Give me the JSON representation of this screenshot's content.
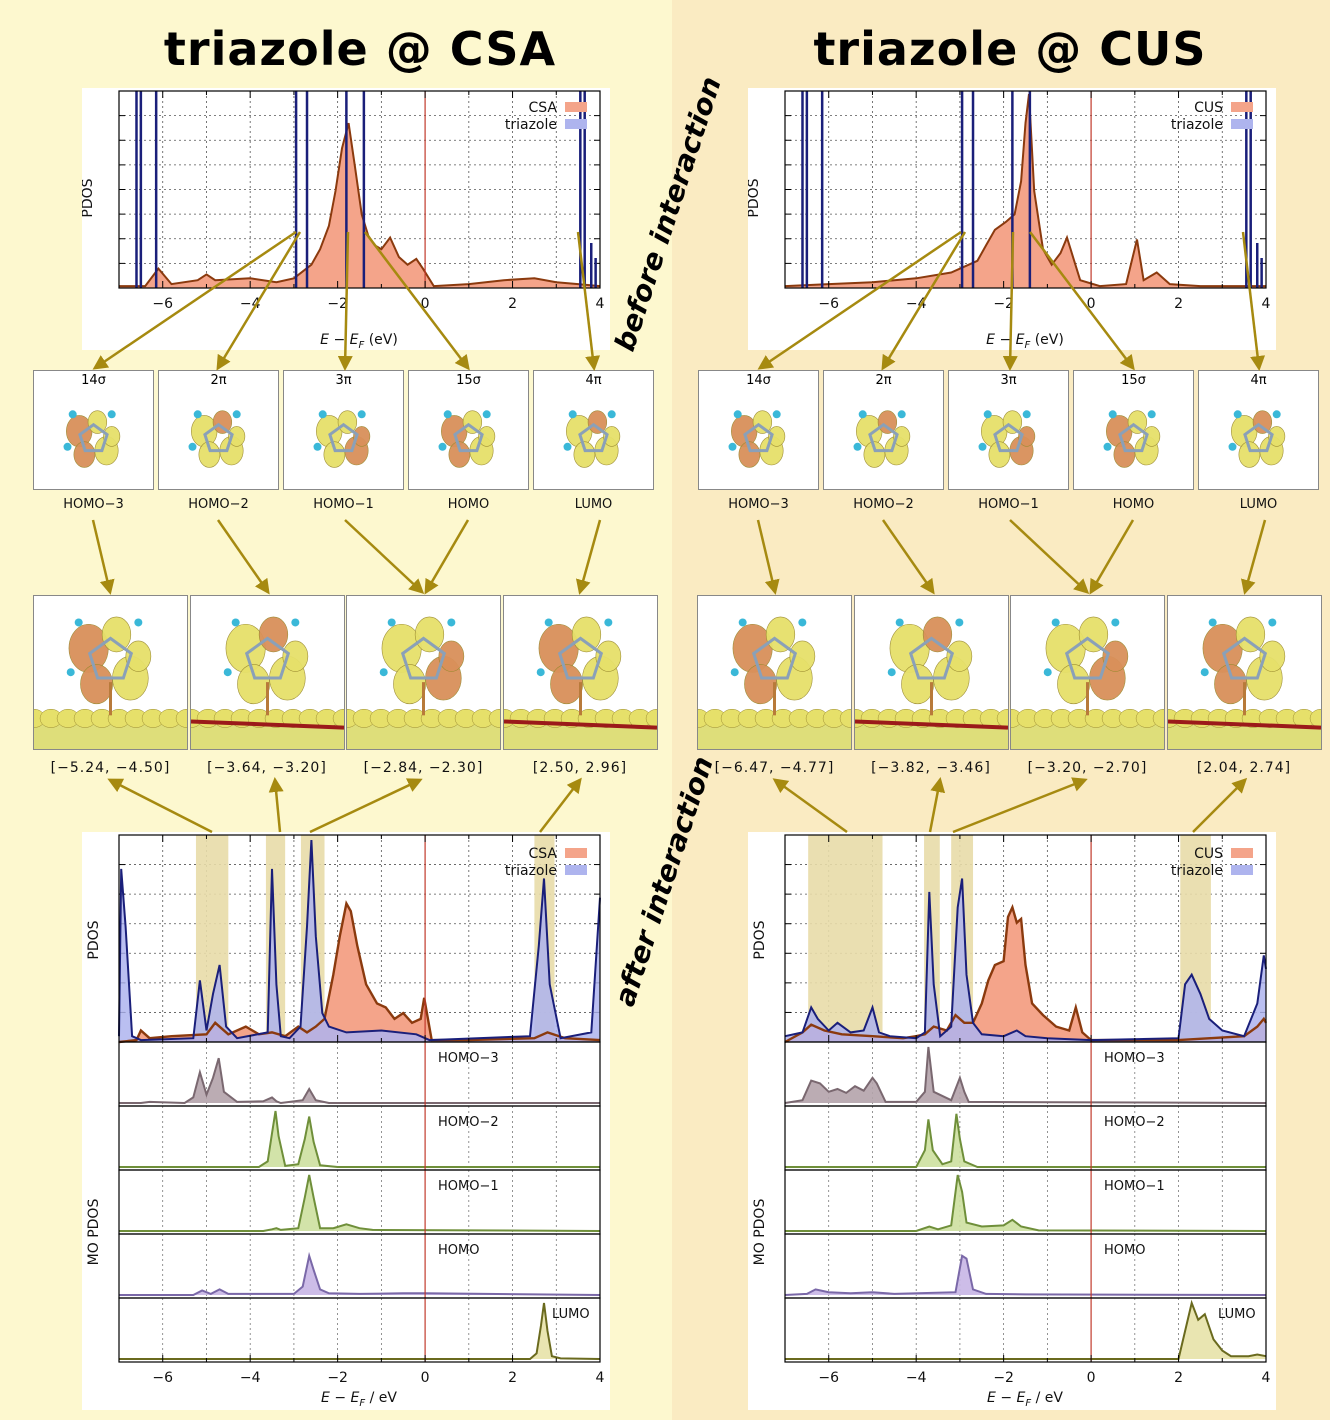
{
  "left": {
    "title": "triazole @ CSA",
    "surface": "CSA",
    "legend": [
      "CSA",
      "triazole"
    ],
    "top_xlabel": "E − E",
    "top_xlabel_sub": "F",
    "top_xlabel_unit": " (eV)",
    "ylabel_top": "PDOS",
    "orbitals": [
      "14σ",
      "2π",
      "3π",
      "15σ",
      "4π"
    ],
    "mo_names": [
      "HOMO−3",
      "HOMO−2",
      "HOMO−1",
      "HOMO",
      "LUMO"
    ],
    "ranges": [
      "[−5.24, −4.50]",
      "[−3.64, −3.20]",
      "[−2.84, −2.30]",
      "[2.50, 2.96]"
    ],
    "ylabel_bottom": "PDOS",
    "ylabel_mo": "MO PDOS",
    "bottom_xlabel": "E − E",
    "bottom_xlabel_sub": "F",
    "bottom_xlabel_unit": " / eV"
  },
  "right": {
    "title": "triazole @ CUS",
    "surface": "CUS",
    "legend": [
      "CUS",
      "triazole"
    ],
    "top_xlabel": "E − E",
    "top_xlabel_sub": "F",
    "top_xlabel_unit": " (eV)",
    "ylabel_top": "PDOS",
    "orbitals": [
      "14σ",
      "2π",
      "3π",
      "15σ",
      "4π"
    ],
    "mo_names": [
      "HOMO−3",
      "HOMO−2",
      "HOMO−1",
      "HOMO",
      "LUMO"
    ],
    "ranges": [
      "[−6.47, −4.77]",
      "[−3.82, −3.46]",
      "[−3.20, −2.70]",
      "[2.04, 2.74]"
    ],
    "ylabel_bottom": "PDOS",
    "ylabel_mo": "MO PDOS",
    "bottom_xlabel": "E − E",
    "bottom_xlabel_sub": "F",
    "bottom_xlabel_unit": " / eV"
  },
  "labels": {
    "before": "before interaction",
    "after": "after interaction"
  },
  "colors": {
    "surface_fill": "#f4a48a",
    "surface_line": "#8b3a0e",
    "triazole_line": "#1a1f7a",
    "triazole_fill": "#aeb4ee",
    "fermi_line": "#c0392b",
    "highlight": "#e8dca8",
    "arrow": "#a68a10",
    "orbital_yellow": "#e6e06a",
    "orbital_orange": "#d9905a"
  },
  "chart_data": [
    {
      "type": "line",
      "panel": "triazole @ CSA, before interaction",
      "xlim": [
        -7,
        4
      ],
      "xticks": [
        -6,
        -4,
        -2,
        0,
        2,
        4
      ],
      "xlabel": "E − E_F (eV)",
      "ylabel": "PDOS",
      "series": [
        {
          "name": "triazole",
          "kind": "lines",
          "x": [
            -6.6,
            -6.5,
            -6.15,
            -2.95,
            -2.7,
            -1.8,
            -1.4,
            3.55,
            3.65,
            3.8,
            3.9
          ]
        },
        {
          "name": "CSA",
          "kind": "curve",
          "x": [
            -7,
            -6.4,
            -6.1,
            -5.8,
            -5.2,
            -5.0,
            -4.8,
            -4.0,
            -3.4,
            -3.0,
            -2.6,
            -2.4,
            -2.2,
            -2.05,
            -1.9,
            -1.75,
            -1.6,
            -1.45,
            -1.3,
            -1.15,
            -1.0,
            -0.8,
            -0.6,
            -0.4,
            -0.2,
            -0.05,
            0.2,
            1.0,
            1.8,
            2.5,
            3.0,
            3.5,
            4.0
          ],
          "y": [
            0.01,
            0.01,
            0.1,
            0.02,
            0.04,
            0.07,
            0.04,
            0.05,
            0.03,
            0.05,
            0.12,
            0.2,
            0.32,
            0.5,
            0.72,
            0.85,
            0.62,
            0.38,
            0.27,
            0.22,
            0.2,
            0.26,
            0.16,
            0.12,
            0.15,
            0.1,
            0.01,
            0.02,
            0.04,
            0.05,
            0.03,
            0.02,
            0.01
          ]
        }
      ]
    },
    {
      "type": "line",
      "panel": "triazole @ CUS, before interaction",
      "xlim": [
        -7,
        4
      ],
      "xticks": [
        -6,
        -4,
        -2,
        0,
        2,
        4
      ],
      "xlabel": "E − E_F (eV)",
      "ylabel": "PDOS",
      "series": [
        {
          "name": "triazole",
          "kind": "lines",
          "x": [
            -6.6,
            -6.5,
            -6.15,
            -2.95,
            -2.7,
            -1.8,
            -1.4,
            3.55,
            3.65,
            3.8,
            3.9
          ]
        },
        {
          "name": "CUS",
          "kind": "curve",
          "x": [
            -7,
            -6.0,
            -5.0,
            -4.0,
            -3.2,
            -2.6,
            -2.4,
            -2.2,
            -1.95,
            -1.75,
            -1.6,
            -1.5,
            -1.42,
            -1.3,
            -1.1,
            -0.9,
            -0.7,
            -0.55,
            -0.4,
            -0.25,
            0.2,
            0.8,
            1.05,
            1.2,
            1.5,
            1.8,
            2.5,
            3.5,
            4.0
          ],
          "y": [
            0.01,
            0.02,
            0.03,
            0.05,
            0.08,
            0.14,
            0.22,
            0.3,
            0.34,
            0.38,
            0.55,
            0.85,
            1.0,
            0.5,
            0.2,
            0.12,
            0.18,
            0.26,
            0.15,
            0.04,
            0.01,
            0.02,
            0.25,
            0.04,
            0.08,
            0.02,
            0.01,
            0.01,
            0.01
          ]
        }
      ]
    },
    {
      "type": "area",
      "panel": "triazole @ CSA, after interaction",
      "xlim": [
        -7,
        4
      ],
      "xticks": [
        -6,
        -4,
        -2,
        0,
        2,
        4
      ],
      "xlabel": "E − E_F / eV",
      "ylabel": "PDOS",
      "highlight_ranges": [
        [
          -5.24,
          -4.5
        ],
        [
          -3.64,
          -3.2
        ],
        [
          -2.84,
          -2.3
        ],
        [
          2.5,
          2.96
        ]
      ],
      "series": [
        {
          "name": "triazole",
          "x": [
            -7,
            -6.95,
            -6.85,
            -6.7,
            -6.5,
            -5.3,
            -5.15,
            -5.0,
            -4.85,
            -4.7,
            -4.55,
            -4.3,
            -3.6,
            -3.5,
            -3.4,
            -3.3,
            -3.1,
            -2.85,
            -2.7,
            -2.6,
            -2.5,
            -2.35,
            -2.2,
            -1.8,
            -1.0,
            -0.2,
            0.1,
            2.4,
            2.6,
            2.72,
            2.85,
            3.1,
            3.8,
            4.0
          ],
          "y": [
            0.03,
            0.9,
            0.6,
            0.03,
            0.01,
            0.02,
            0.32,
            0.06,
            0.25,
            0.4,
            0.08,
            0.02,
            0.05,
            0.9,
            0.3,
            0.03,
            0.02,
            0.08,
            0.6,
            1.05,
            0.55,
            0.15,
            0.08,
            0.05,
            0.06,
            0.04,
            0.01,
            0.03,
            0.5,
            0.85,
            0.3,
            0.02,
            0.05,
            0.75
          ]
        },
        {
          "name": "CSA",
          "x": [
            -7,
            -6.6,
            -6.5,
            -6.3,
            -5.8,
            -5.0,
            -4.8,
            -4.5,
            -4.1,
            -3.8,
            -3.5,
            -3.2,
            -2.9,
            -2.7,
            -2.5,
            -2.3,
            -2.1,
            -1.95,
            -1.8,
            -1.7,
            -1.55,
            -1.35,
            -1.1,
            -0.9,
            -0.7,
            -0.5,
            -0.3,
            -0.1,
            -0.02,
            0.15,
            1.0,
            2.5,
            2.8,
            3.2,
            4.0
          ],
          "y": [
            0.0,
            0.01,
            0.06,
            0.02,
            0.03,
            0.04,
            0.1,
            0.04,
            0.08,
            0.04,
            0.05,
            0.03,
            0.08,
            0.05,
            0.08,
            0.12,
            0.35,
            0.55,
            0.72,
            0.68,
            0.5,
            0.3,
            0.2,
            0.18,
            0.12,
            0.15,
            0.1,
            0.12,
            0.23,
            0.01,
            0.01,
            0.02,
            0.05,
            0.02,
            0.01
          ]
        }
      ]
    },
    {
      "type": "area",
      "panel": "triazole @ CUS, after interaction",
      "xlim": [
        -7,
        4
      ],
      "xticks": [
        -6,
        -4,
        -2,
        0,
        2,
        4
      ],
      "xlabel": "E − E_F / eV",
      "ylabel": "PDOS",
      "highlight_ranges": [
        [
          -6.47,
          -4.77
        ],
        [
          -3.82,
          -3.46
        ],
        [
          -3.2,
          -2.7
        ],
        [
          2.04,
          2.74
        ]
      ],
      "series": [
        {
          "name": "triazole",
          "x": [
            -7,
            -6.6,
            -6.4,
            -6.25,
            -6.0,
            -5.8,
            -5.5,
            -5.2,
            -5.0,
            -4.85,
            -4.6,
            -4.0,
            -3.8,
            -3.7,
            -3.6,
            -3.45,
            -3.2,
            -3.05,
            -2.95,
            -2.85,
            -2.7,
            -2.5,
            -2.0,
            -1.7,
            -1.5,
            -1.0,
            0.0,
            2.0,
            2.15,
            2.3,
            2.5,
            2.7,
            3.0,
            3.5,
            3.8,
            3.95,
            4.0
          ],
          "y": [
            0.03,
            0.05,
            0.18,
            0.12,
            0.06,
            0.1,
            0.05,
            0.06,
            0.18,
            0.05,
            0.03,
            0.02,
            0.05,
            0.78,
            0.3,
            0.03,
            0.08,
            0.7,
            0.85,
            0.35,
            0.1,
            0.04,
            0.03,
            0.06,
            0.03,
            0.02,
            0.01,
            0.02,
            0.3,
            0.35,
            0.25,
            0.12,
            0.06,
            0.03,
            0.2,
            0.45,
            0.38
          ]
        },
        {
          "name": "CUS",
          "x": [
            -7,
            -6.6,
            -6.4,
            -6.1,
            -5.7,
            -5.0,
            -4.3,
            -4.0,
            -3.8,
            -3.6,
            -3.3,
            -3.1,
            -2.9,
            -2.7,
            -2.5,
            -2.35,
            -2.2,
            -2.0,
            -1.9,
            -1.8,
            -1.7,
            -1.6,
            -1.5,
            -1.35,
            -1.1,
            -0.8,
            -0.5,
            -0.35,
            -0.2,
            0.0,
            2.0,
            3.5,
            3.8,
            3.95,
            4.0
          ],
          "y": [
            0.0,
            0.05,
            0.09,
            0.06,
            0.04,
            0.03,
            0.02,
            0.03,
            0.04,
            0.08,
            0.06,
            0.14,
            0.1,
            0.1,
            0.2,
            0.32,
            0.4,
            0.42,
            0.65,
            0.7,
            0.62,
            0.64,
            0.4,
            0.2,
            0.14,
            0.08,
            0.06,
            0.18,
            0.05,
            0.01,
            0.01,
            0.03,
            0.08,
            0.12,
            0.1
          ]
        }
      ]
    },
    {
      "type": "area",
      "panel": "triazole @ CSA, MO PDOS",
      "xlim": [
        -7,
        4
      ],
      "xlabel": "E − E_F / eV",
      "ylabel": "MO PDOS",
      "series": [
        {
          "name": "HOMO−3",
          "x": [
            -7,
            -6.5,
            -6.3,
            -5.5,
            -5.3,
            -5.15,
            -5.0,
            -4.85,
            -4.72,
            -4.6,
            -4.3,
            -3.7,
            -3.5,
            -3.4,
            -3.3,
            -2.8,
            -2.65,
            -2.5,
            -2.2,
            4.0
          ],
          "y": [
            0.0,
            0.0,
            0.02,
            0.0,
            0.1,
            0.55,
            0.15,
            0.45,
            0.8,
            0.2,
            0.02,
            0.03,
            0.1,
            0.03,
            0.0,
            0.05,
            0.25,
            0.05,
            0.0,
            0.0
          ]
        },
        {
          "name": "HOMO−2",
          "x": [
            -7,
            -3.8,
            -3.6,
            -3.5,
            -3.42,
            -3.35,
            -3.2,
            -2.9,
            -2.75,
            -2.65,
            -2.55,
            -2.4,
            -2.0,
            4.0
          ],
          "y": [
            0.0,
            0.0,
            0.1,
            0.6,
            1.0,
            0.55,
            0.02,
            0.05,
            0.5,
            0.9,
            0.45,
            0.03,
            0.0,
            0.0
          ]
        },
        {
          "name": "HOMO−1",
          "x": [
            -7,
            -3.7,
            -3.5,
            -3.4,
            -3.3,
            -2.9,
            -2.75,
            -2.65,
            -2.55,
            -2.4,
            -2.1,
            -1.8,
            -1.5,
            -1.2,
            4.0
          ],
          "y": [
            0.0,
            0.0,
            0.03,
            0.05,
            0.02,
            0.05,
            0.6,
            1.0,
            0.6,
            0.05,
            0.05,
            0.12,
            0.05,
            0.02,
            0.0
          ]
        },
        {
          "name": "HOMO",
          "x": [
            -7,
            -5.3,
            -5.1,
            -4.9,
            -4.7,
            -4.5,
            -3.0,
            -2.8,
            -2.65,
            -2.55,
            -2.4,
            -2.2,
            -1.5,
            -0.5,
            0.0,
            4.0
          ],
          "y": [
            0.0,
            0.0,
            0.08,
            0.02,
            0.1,
            0.02,
            0.02,
            0.15,
            0.7,
            0.45,
            0.1,
            0.03,
            0.02,
            0.03,
            0.03,
            0.0
          ]
        },
        {
          "name": "LUMO",
          "x": [
            -7,
            2.4,
            2.55,
            2.65,
            2.72,
            2.8,
            2.9,
            3.1,
            4.0
          ],
          "y": [
            0.0,
            0.0,
            0.1,
            0.6,
            1.0,
            0.5,
            0.05,
            0.01,
            0.0
          ]
        }
      ]
    },
    {
      "type": "area",
      "panel": "triazole @ CUS, MO PDOS",
      "xlim": [
        -7,
        4
      ],
      "xlabel": "E − E_F / eV",
      "ylabel": "MO PDOS",
      "series": [
        {
          "name": "HOMO−3",
          "x": [
            -7,
            -6.6,
            -6.4,
            -6.2,
            -6.0,
            -5.8,
            -5.6,
            -5.4,
            -5.2,
            -5.0,
            -4.9,
            -4.7,
            -4.0,
            -3.8,
            -3.72,
            -3.6,
            -3.2,
            -3.0,
            -2.9,
            -2.8,
            4.0
          ],
          "y": [
            0.0,
            0.05,
            0.4,
            0.35,
            0.2,
            0.25,
            0.18,
            0.3,
            0.22,
            0.45,
            0.35,
            0.02,
            0.02,
            0.2,
            1.0,
            0.2,
            0.05,
            0.45,
            0.2,
            0.02,
            0.0
          ]
        },
        {
          "name": "HOMO−2",
          "x": [
            -7,
            -4.0,
            -3.8,
            -3.72,
            -3.62,
            -3.4,
            -3.2,
            -3.08,
            -3.0,
            -2.9,
            -2.6,
            4.0
          ],
          "y": [
            0.0,
            0.0,
            0.3,
            0.85,
            0.3,
            0.05,
            0.1,
            0.95,
            0.5,
            0.1,
            0.0,
            0.0
          ]
        },
        {
          "name": "HOMO−1",
          "x": [
            -7,
            -4.0,
            -3.7,
            -3.5,
            -3.2,
            -3.05,
            -2.95,
            -2.85,
            -2.5,
            -2.0,
            -1.8,
            -1.6,
            -1.2,
            4.0
          ],
          "y": [
            0.0,
            0.0,
            0.08,
            0.03,
            0.1,
            1.0,
            0.7,
            0.15,
            0.08,
            0.1,
            0.2,
            0.08,
            0.01,
            0.0
          ]
        },
        {
          "name": "HOMO",
          "x": [
            -7,
            -6.5,
            -6.3,
            -6.0,
            -5.5,
            -5.0,
            -4.5,
            -3.1,
            -2.95,
            -2.85,
            -2.7,
            -2.4,
            -1.5,
            4.0
          ],
          "y": [
            0.0,
            0.02,
            0.1,
            0.05,
            0.03,
            0.05,
            0.02,
            0.05,
            0.7,
            0.65,
            0.1,
            0.02,
            0.01,
            0.0
          ]
        },
        {
          "name": "LUMO",
          "x": [
            -7,
            2.0,
            2.15,
            2.3,
            2.45,
            2.6,
            2.8,
            3.0,
            3.2,
            3.6,
            3.8,
            4.0
          ],
          "y": [
            0.0,
            0.0,
            0.5,
            1.0,
            0.7,
            0.8,
            0.35,
            0.15,
            0.05,
            0.05,
            0.08,
            0.05
          ]
        }
      ]
    }
  ]
}
